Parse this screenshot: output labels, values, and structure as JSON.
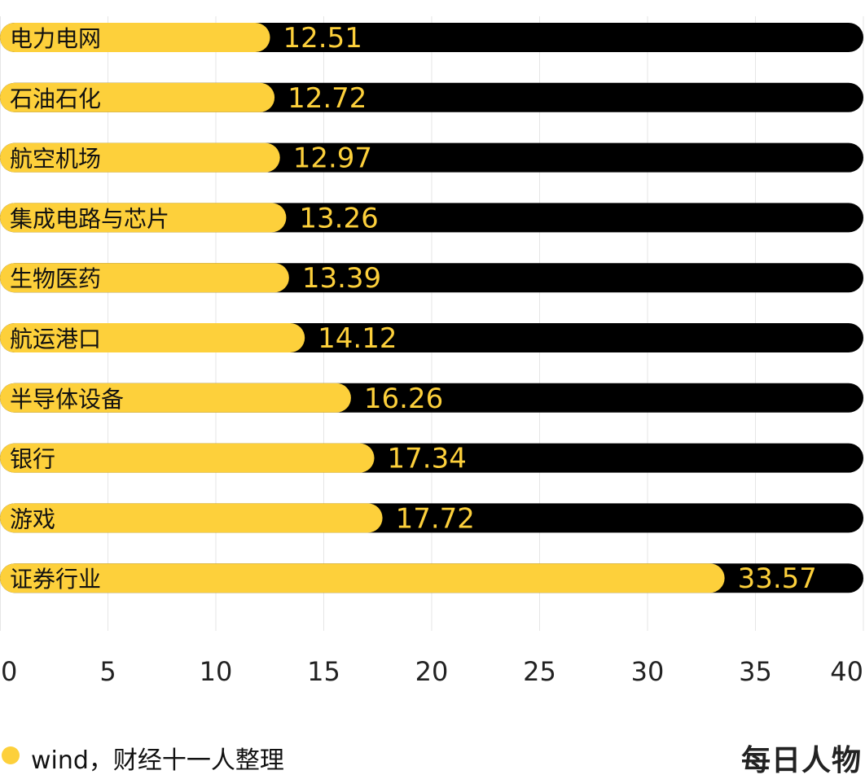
{
  "chart_data": {
    "type": "bar",
    "orientation": "horizontal",
    "categories": [
      "电力电网",
      "石油石化",
      "航空机场",
      "集成电路与芯片",
      "生物医药",
      "航运港口",
      "半导体设备",
      "银行",
      "游戏",
      "证券行业"
    ],
    "values": [
      12.51,
      12.72,
      12.97,
      13.26,
      13.39,
      14.12,
      16.26,
      17.34,
      17.72,
      33.57
    ],
    "value_labels": [
      "12.51",
      "12.72",
      "12.97",
      "13.26",
      "13.39",
      "14.12",
      "16.26",
      "17.34",
      "17.72",
      "33.57"
    ],
    "xlim": [
      0,
      40
    ],
    "xticks": [
      "0",
      "5",
      "10",
      "15",
      "20",
      "25",
      "30",
      "35",
      "40"
    ],
    "grid": true,
    "colors": {
      "bar": "#FDD03B",
      "track": "#000000",
      "grid": "#E6E6E6"
    }
  },
  "footer": {
    "source": "wind，财经十一人整理",
    "brand": "每日人物"
  }
}
